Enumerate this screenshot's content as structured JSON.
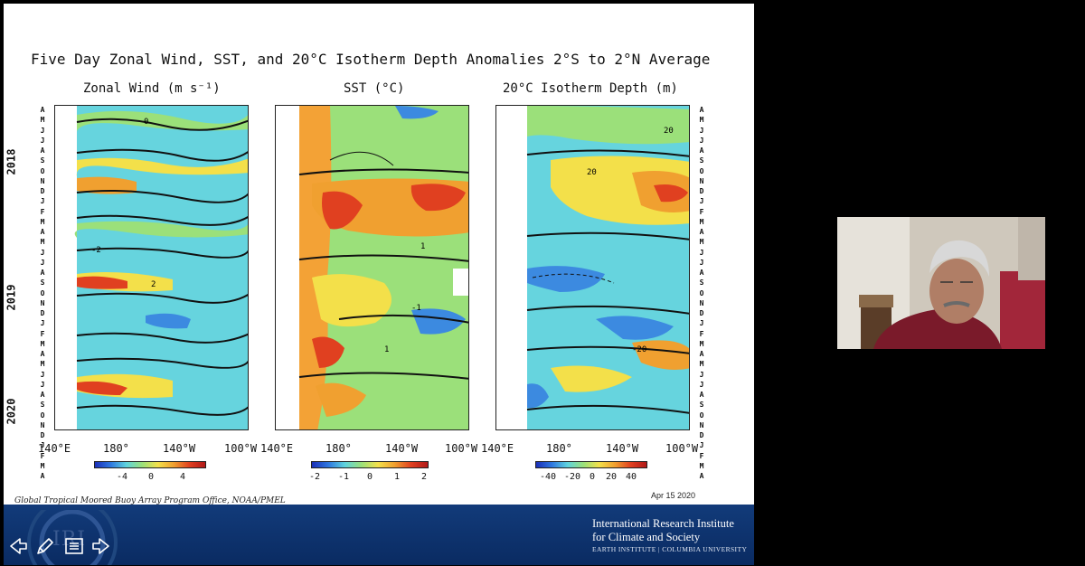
{
  "slide": {
    "title": "Five Day Zonal Wind, SST, and 20°C Isotherm Depth Anomalies  2°S to 2°N Average",
    "panels": [
      {
        "title": "Zonal Wind (m s⁻¹)",
        "colorbar_labels": [
          "-4",
          "0",
          "4"
        ]
      },
      {
        "title": "SST (°C)",
        "colorbar_labels": [
          "-2",
          "-1",
          "0",
          "1",
          "2"
        ]
      },
      {
        "title": "20°C Isotherm Depth (m)",
        "colorbar_labels": [
          "-40",
          "-20",
          "0",
          "20",
          "40"
        ]
      }
    ],
    "months_left": [
      "A",
      "M",
      "J",
      "J",
      "A",
      "S",
      "O",
      "N",
      "D",
      "J",
      "F",
      "M",
      "A",
      "M",
      "J",
      "J",
      "A",
      "S",
      "O",
      "N",
      "D",
      "J",
      "F",
      "M",
      "A",
      "M",
      "J",
      "J",
      "A",
      "S",
      "O",
      "N",
      "D",
      "J",
      "F",
      "M",
      "A"
    ],
    "months_right": [
      "A",
      "M",
      "J",
      "J",
      "A",
      "S",
      "O",
      "N",
      "D",
      "J",
      "F",
      "M",
      "A",
      "M",
      "J",
      "J",
      "A",
      "S",
      "O",
      "N",
      "D",
      "J",
      "F",
      "M",
      "A",
      "M",
      "J",
      "J",
      "A",
      "S",
      "O",
      "N",
      "D",
      "J",
      "F",
      "M",
      "A"
    ],
    "years": [
      "2018",
      "2019",
      "2020"
    ],
    "xticks": [
      "140°E",
      "180°",
      "140°W",
      "100°W"
    ],
    "contour_labels": [
      "0",
      "2",
      "-2",
      "1",
      "-1",
      "20",
      "-20"
    ],
    "footer_left": "Global Tropical Moored Buoy Array Program Office, NOAA/PMEL",
    "footer_date": "Apr 15 2020"
  },
  "banner": {
    "logo_text": "IRI",
    "institute_line1": "International Research Institute",
    "institute_line2": "for Climate and Society",
    "institute_line3": "EARTH INSTITUTE | COLUMBIA UNIVERSITY"
  },
  "controls": [
    {
      "icon": "arrow-left-icon"
    },
    {
      "icon": "pen-icon"
    },
    {
      "icon": "menu-icon"
    },
    {
      "icon": "arrow-right-icon"
    }
  ],
  "colors": {
    "banner": "#0a2b62",
    "cold": "#1e3cc8",
    "neutral": "#5fd3dd",
    "warm": "#e04020"
  }
}
